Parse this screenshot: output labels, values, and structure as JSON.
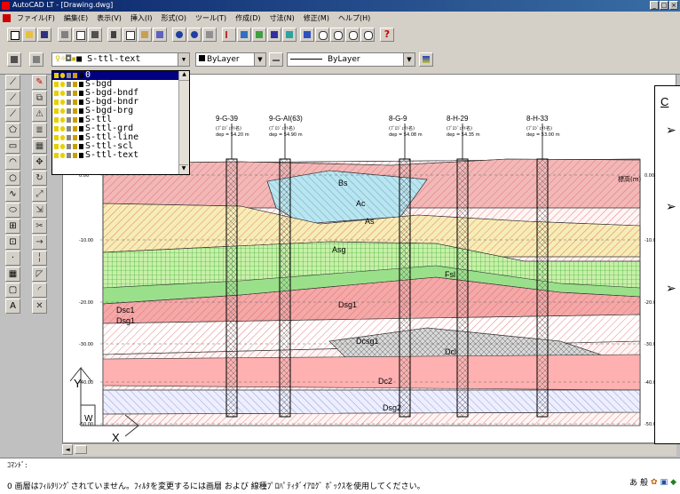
{
  "titlebar": {
    "title": "AutoCAD LT - [Drawing.dwg]"
  },
  "menu": [
    "ファイル(F)",
    "編集(E)",
    "表示(V)",
    "挿入(I)",
    "形式(O)",
    "ツール(T)",
    "作成(D)",
    "寸法(N)",
    "修正(M)",
    "ヘルプ(H)"
  ],
  "properties": {
    "layer_current": "S-ttl-text",
    "color": "ByLayer",
    "linetype": "ByLayer"
  },
  "layers": [
    "0",
    "S-bgd",
    "S-bgd-bndf",
    "S-bgd-bndr",
    "S-bgd-brg",
    "S-ttl",
    "S-ttl-grd",
    "S-ttl-line",
    "S-ttl-scl",
    "S-ttl-text"
  ],
  "drawing": {
    "boreholes": [
      {
        "name": "9-G-39",
        "note": "(ﾌﾟﾛｼﾞｪｸﾄ名)",
        "depth": "dep = 54.20 m"
      },
      {
        "name": "9-G-AI(63)",
        "note": "(ﾌﾟﾛｼﾞｪｸﾄ名)",
        "depth": "dep = 54.90 m"
      },
      {
        "name": "8-G-9",
        "note": "(ﾌﾟﾛｼﾞｪｸﾄ名)",
        "depth": "dep = 54.08 m"
      },
      {
        "name": "8-H-29",
        "note": "(ﾌﾟﾛｼﾞｪｸﾄ名)",
        "depth": "dep = 54.35 m"
      },
      {
        "name": "8-H-33",
        "note": "(ﾌﾟﾛｼﾞｪｸﾄ名)",
        "depth": "dep = 53.00 m"
      }
    ],
    "elevation_label": "標高(m)",
    "axis_left": [
      "0.00",
      "-10.00",
      "-20.00",
      "-30.00",
      "-40.00",
      "-50.00"
    ],
    "axis_right": [
      "0.00",
      "-10.00",
      "-20.00",
      "-30.00",
      "-40.00",
      "-50.00"
    ],
    "strata": [
      "Bs",
      "Ac",
      "As",
      "Asg",
      "Fsl",
      "Dsg1",
      "Dsc1",
      "Dsg1",
      "Dcsg1",
      "Dcl",
      "Dc2",
      "Dsg2"
    ],
    "ucs": {
      "y": "Y",
      "w": "W",
      "x": "X"
    }
  },
  "notepanel": {
    "first": "C"
  },
  "command": {
    "prompt": "ｺﾏﾝﾄﾞ:",
    "message": "0 画層はﾌｨﾙﾀﾘﾝｸﾞされていません。ﾌｨﾙﾀを変更するには画層 および 線種ﾌﾟﾛﾊﾟﾃｨﾀﾞｲｱﾛｸﾞ ﾎﾞｯｸｽを使用してください。",
    "ime": "あ 般"
  },
  "colors": {
    "bs": "#f2b8b8",
    "ac": "#b8e6ef",
    "as": "#f6edb4",
    "asg": "#c8f0a8",
    "fsl": "#9ae08a",
    "dsg": "#f4a8a8",
    "dcsg": "#ffd0d0",
    "dcl": "#d8d8d8",
    "dc": "#ffb0b0",
    "sky": "#bcd6ff"
  }
}
